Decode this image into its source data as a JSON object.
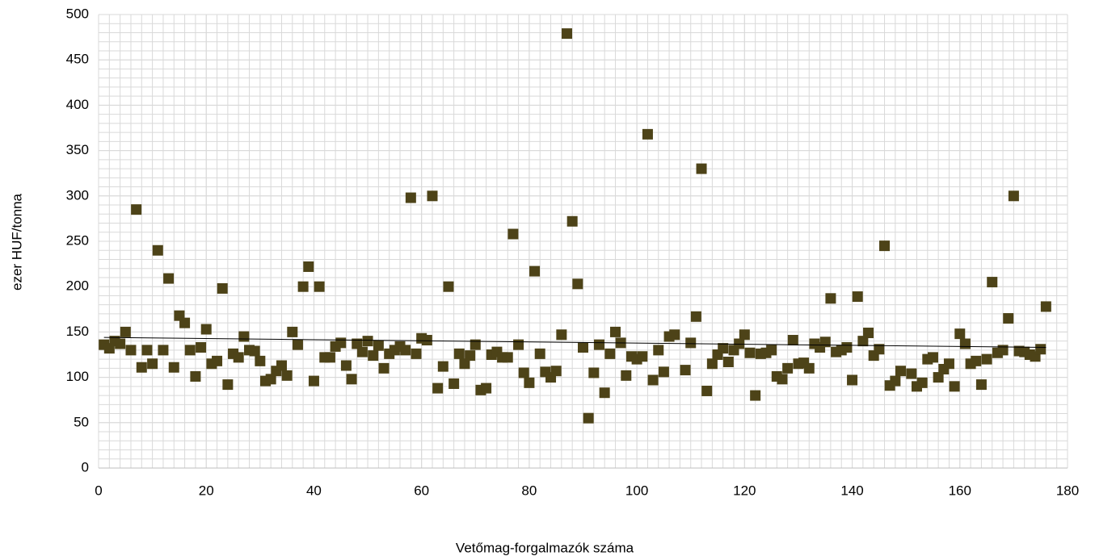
{
  "chart_data": {
    "type": "scatter",
    "x_label": "Vetőmag-forgalmazók száma",
    "y_label": "ezer HUF/tonna",
    "color": "#4d4318",
    "xlim": [
      0,
      180
    ],
    "xticks": [
      0,
      20,
      40,
      60,
      80,
      100,
      120,
      140,
      160,
      180
    ],
    "ylim": [
      0,
      500
    ],
    "yticks": [
      0,
      50,
      100,
      150,
      200,
      250,
      300,
      350,
      400,
      450,
      500
    ],
    "grid": true,
    "minor_grid": {
      "x": 2,
      "y": 10
    },
    "x": [
      1,
      2,
      3,
      4,
      5,
      6,
      7,
      8,
      9,
      10,
      11,
      12,
      13,
      14,
      15,
      16,
      17,
      18,
      19,
      20,
      21,
      22,
      23,
      24,
      25,
      26,
      27,
      28,
      29,
      30,
      31,
      32,
      33,
      34,
      35,
      36,
      37,
      38,
      39,
      40,
      41,
      42,
      43,
      44,
      45,
      46,
      47,
      48,
      49,
      50,
      51,
      52,
      53,
      54,
      55,
      56,
      57,
      58,
      59,
      60,
      61,
      62,
      63,
      64,
      65,
      66,
      67,
      68,
      69,
      70,
      71,
      72,
      73,
      74,
      75,
      76,
      77,
      78,
      79,
      80,
      81,
      82,
      83,
      84,
      85,
      86,
      87,
      88,
      89,
      90,
      91,
      92,
      93,
      94,
      95,
      96,
      97,
      98,
      99,
      100,
      101,
      102,
      103,
      104,
      105,
      106,
      107,
      109,
      110,
      111,
      112,
      113,
      114,
      115,
      116,
      117,
      118,
      119,
      120,
      121,
      122,
      123,
      124,
      125,
      126,
      127,
      128,
      129,
      130,
      131,
      132,
      133,
      134,
      135,
      136,
      137,
      138,
      139,
      140,
      141,
      142,
      143,
      144,
      145,
      146,
      147,
      148,
      149,
      151,
      152,
      153,
      154,
      155,
      156,
      157,
      158,
      159,
      160,
      161,
      162,
      163,
      164,
      165,
      166,
      167,
      168,
      169,
      170,
      171,
      172,
      173,
      174,
      175,
      176
    ],
    "values": [
      136,
      132,
      140,
      137,
      150,
      130,
      285,
      111,
      130,
      115,
      240,
      130,
      209,
      111,
      168,
      160,
      130,
      101,
      133,
      153,
      115,
      118,
      198,
      92,
      126,
      122,
      145,
      130,
      129,
      118,
      96,
      98,
      107,
      113,
      102,
      150,
      136,
      200,
      222,
      96,
      200,
      122,
      122,
      134,
      138,
      113,
      98,
      137,
      128,
      140,
      124,
      135,
      110,
      126,
      130,
      134,
      130,
      298,
      126,
      143,
      141,
      300,
      88,
      112,
      200,
      93,
      126,
      115,
      124,
      136,
      86,
      88,
      125,
      128,
      122,
      122,
      258,
      136,
      105,
      94,
      217,
      126,
      106,
      100,
      107,
      147,
      479,
      272,
      203,
      133,
      55,
      105,
      136,
      83,
      126,
      150,
      138,
      102,
      123,
      120,
      123,
      368,
      97,
      130,
      106,
      145,
      147,
      108,
      138,
      167,
      330,
      85,
      115,
      125,
      132,
      117,
      130,
      137,
      147,
      127,
      80,
      126,
      127,
      130,
      101,
      98,
      110,
      141,
      115,
      116,
      110,
      137,
      133,
      139,
      187,
      128,
      130,
      133,
      97,
      189,
      140,
      149,
      124,
      131,
      245,
      91,
      96,
      107,
      104,
      90,
      94,
      120,
      122,
      100,
      109,
      115,
      90,
      148,
      137,
      115,
      118,
      92,
      120,
      205,
      127,
      130,
      165,
      300,
      129,
      128,
      125,
      123,
      131,
      178
    ],
    "trendline": {
      "x": [
        1,
        176
      ],
      "values": [
        144,
        133
      ],
      "color": "#000000"
    }
  }
}
